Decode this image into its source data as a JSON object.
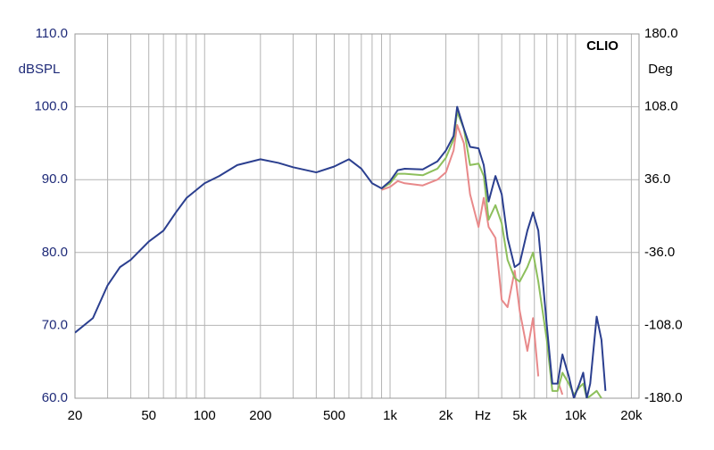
{
  "chart_data": {
    "type": "line",
    "annotation": "CLIO",
    "x_label": "Hz",
    "y_label": "dBSPL",
    "y2_label": "Deg",
    "log_x": true,
    "grid": true,
    "xlim": [
      20,
      22000
    ],
    "ylim": [
      60,
      110
    ],
    "y2lim": [
      -180,
      180
    ],
    "xticks": [
      20,
      50,
      100,
      200,
      500,
      {
        "value": 1000,
        "label": "1k"
      },
      {
        "value": 2000,
        "label": "2k"
      },
      {
        "value": 5000,
        "label": "5k"
      },
      {
        "value": 10000,
        "label": "10k"
      },
      {
        "value": 20000,
        "label": "20k"
      }
    ],
    "x_minor_grid": [
      30,
      40,
      60,
      70,
      80,
      90,
      300,
      400,
      600,
      700,
      800,
      900,
      3000,
      4000,
      6000,
      7000,
      8000,
      9000
    ],
    "yticks": [
      {
        "value": 60,
        "label": "60.0"
      },
      {
        "value": 70,
        "label": "70.0"
      },
      {
        "value": 80,
        "label": "80.0"
      },
      {
        "value": 90,
        "label": "90.0"
      },
      {
        "value": 100,
        "label": "100.0"
      },
      {
        "value": 110,
        "label": "110.0"
      }
    ],
    "y2ticks": [
      {
        "value": -180,
        "label": "-180.0"
      },
      {
        "value": -108,
        "label": "-108.0"
      },
      {
        "value": -36,
        "label": "-36.0"
      },
      {
        "value": 36,
        "label": "36.0"
      },
      {
        "value": 108,
        "label": "108.0"
      },
      {
        "value": 180,
        "label": "180.0"
      }
    ],
    "x": [
      20,
      25,
      30,
      35,
      40,
      50,
      60,
      70,
      80,
      100,
      120,
      150,
      200,
      250,
      300,
      400,
      500,
      600,
      700,
      800,
      900,
      1000,
      1100,
      1200,
      1500,
      1800,
      2000,
      2200,
      2300,
      2500,
      2700,
      3000,
      3200,
      3400,
      3700,
      4000,
      4300,
      4700,
      5000,
      5500,
      5900,
      6300,
      7000,
      7500,
      8000,
      8500,
      9200,
      9800,
      10500,
      11000,
      11500,
      12000,
      13000,
      13800,
      14500
    ],
    "series": [
      {
        "color": "#2b3f8f",
        "values": [
          69,
          71,
          75.5,
          78,
          79,
          81.5,
          83,
          85.5,
          87.5,
          89.5,
          90.5,
          92,
          92.8,
          92.3,
          91.7,
          91,
          91.8,
          92.8,
          91.5,
          89.5,
          88.8,
          89.8,
          91.3,
          91.5,
          91.4,
          92.5,
          94,
          96,
          100,
          97,
          94.5,
          94.3,
          92,
          87,
          90.5,
          88,
          82,
          78,
          78.5,
          83,
          85.5,
          83,
          70,
          62,
          62,
          66,
          63,
          60,
          62,
          63.5,
          60,
          62,
          71.2,
          68,
          61
        ]
      },
      {
        "color": "#8dbf5c",
        "values": [
          null,
          null,
          null,
          null,
          null,
          null,
          null,
          null,
          null,
          null,
          null,
          null,
          null,
          null,
          null,
          null,
          null,
          null,
          null,
          null,
          88.8,
          89.5,
          90.8,
          90.8,
          90.6,
          91.5,
          93,
          95.5,
          99.3,
          97,
          92,
          92.2,
          90.5,
          84.5,
          86.5,
          84,
          79,
          76.5,
          76,
          78,
          80,
          76,
          68,
          61,
          61,
          63.5,
          62,
          60.5,
          61.5,
          62,
          60,
          60.3,
          61,
          60,
          null
        ]
      },
      {
        "color": "#e8898a",
        "values": [
          null,
          null,
          null,
          null,
          null,
          null,
          null,
          null,
          null,
          null,
          null,
          null,
          null,
          null,
          null,
          null,
          null,
          null,
          null,
          null,
          88.6,
          89,
          89.8,
          89.5,
          89.2,
          90,
          91,
          94,
          97.5,
          95,
          88,
          83.5,
          87.5,
          83.5,
          82,
          73.5,
          72.5,
          77.5,
          72,
          66.5,
          71,
          63,
          null,
          null,
          62.5,
          60.5,
          null,
          null,
          null,
          null,
          null,
          null,
          null,
          null,
          null
        ]
      }
    ]
  }
}
